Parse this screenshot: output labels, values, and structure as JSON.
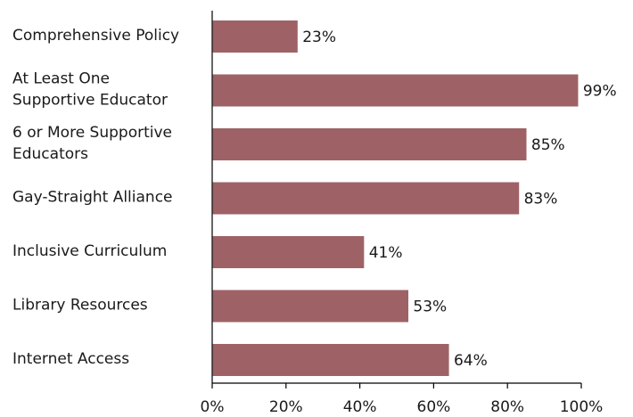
{
  "chart_data": {
    "type": "bar",
    "orientation": "horizontal",
    "categories": [
      [
        "Comprehensive Policy"
      ],
      [
        "At Least One",
        "Supportive Educator"
      ],
      [
        "6 or More Supportive",
        "Educators"
      ],
      [
        "Gay-Straight Alliance"
      ],
      [
        "Inclusive Curriculum"
      ],
      [
        "Library Resources"
      ],
      [
        "Internet Access"
      ]
    ],
    "values": [
      23,
      99,
      85,
      83,
      41,
      53,
      64
    ],
    "value_labels": [
      "23%",
      "99%",
      "85%",
      "83%",
      "41%",
      "53%",
      "64%"
    ],
    "xlim": [
      0,
      100
    ],
    "xticks": [
      "0%",
      "20%",
      "40%",
      "60%",
      "80%",
      "100%"
    ],
    "title": "",
    "xlabel": "",
    "ylabel": "",
    "grid": false,
    "bar_color": "#9e6266"
  }
}
